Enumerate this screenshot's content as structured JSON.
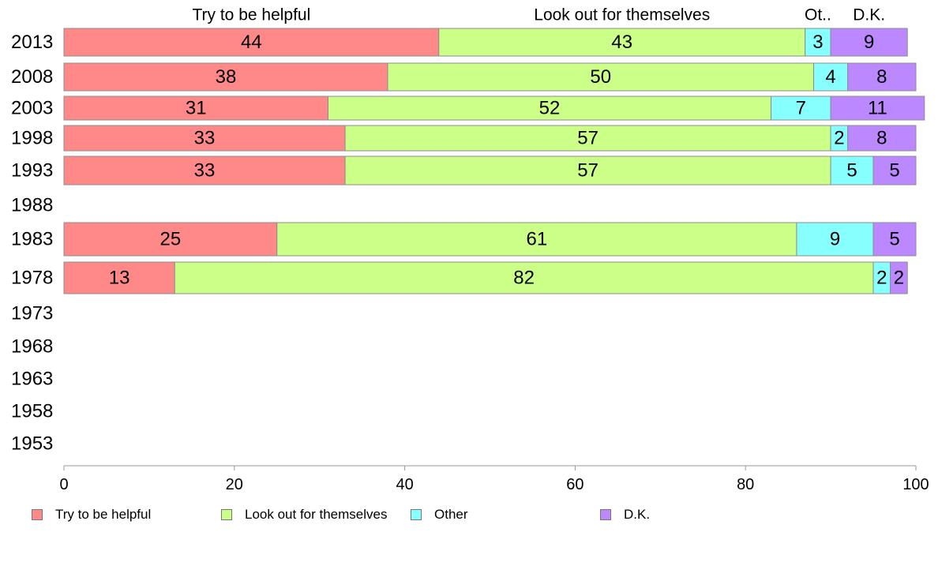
{
  "chart_data": {
    "type": "bar",
    "orientation": "horizontal",
    "stacked": true,
    "categories": [
      "2013",
      "2008",
      "2003",
      "1998",
      "1993",
      "1988",
      "1983",
      "1978",
      "1973",
      "1968",
      "1963",
      "1958",
      "1953"
    ],
    "series": [
      {
        "name": "Try to be helpful",
        "color": "#ff8888",
        "values": [
          44,
          38,
          31,
          33,
          33,
          null,
          25,
          13,
          null,
          null,
          null,
          null,
          null
        ]
      },
      {
        "name": "Look out for themselves",
        "color": "#ccff88",
        "values": [
          43,
          50,
          52,
          57,
          57,
          null,
          61,
          82,
          null,
          null,
          null,
          null,
          null
        ]
      },
      {
        "name": "Other",
        "color": "#88ffff",
        "values": [
          3,
          4,
          7,
          2,
          5,
          null,
          9,
          2,
          null,
          null,
          null,
          null,
          null
        ]
      },
      {
        "name": "D.K.",
        "color": "#bb88ff",
        "values": [
          9,
          8,
          11,
          8,
          5,
          null,
          5,
          2,
          null,
          null,
          null,
          null,
          null
        ]
      }
    ],
    "top_labels": [
      "Try to be helpful",
      "Look out for themselves",
      "Ot..",
      "D.K."
    ],
    "xlim": [
      0,
      100
    ],
    "xticks": [
      0,
      20,
      40,
      60,
      80,
      100
    ],
    "grid": false,
    "legend_position": "bottom"
  }
}
